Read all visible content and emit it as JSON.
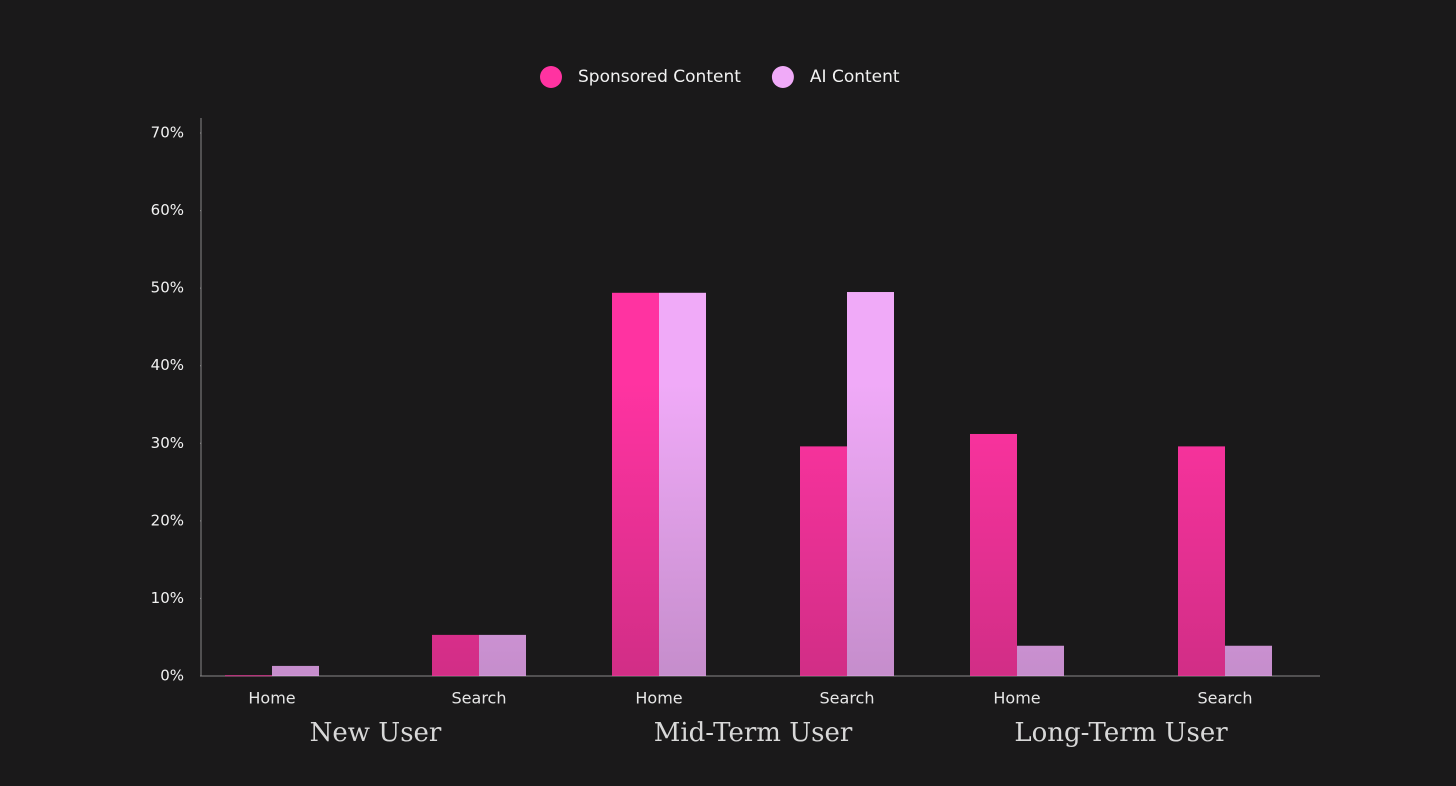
{
  "chart_data": {
    "type": "bar",
    "categories": [
      "Home",
      "Search",
      "Home",
      "Search",
      "Home",
      "Search"
    ],
    "groups": [
      "New User",
      "Mid-Term User",
      "Long-Term User"
    ],
    "series": [
      {
        "name": "Sponsored Content",
        "color": "#ff33a1",
        "values": [
          0.1,
          5.3,
          49.4,
          29.6,
          31.2,
          29.6
        ]
      },
      {
        "name": "AI Content",
        "color": "#f0aaf8",
        "values": [
          1.3,
          5.3,
          49.4,
          49.5,
          3.9,
          3.9
        ]
      }
    ],
    "ylim": [
      0,
      70
    ],
    "yticks": [
      {
        "value": 0,
        "label": "0%"
      },
      {
        "value": 10,
        "label": "10%"
      },
      {
        "value": 20,
        "label": "20%"
      },
      {
        "value": 30,
        "label": "30%"
      },
      {
        "value": 40,
        "label": "40%"
      },
      {
        "value": 50,
        "label": "50%"
      },
      {
        "value": 60,
        "label": "60%"
      },
      {
        "value": 70,
        "label": "70%"
      }
    ],
    "grid": false,
    "legend": "top"
  }
}
